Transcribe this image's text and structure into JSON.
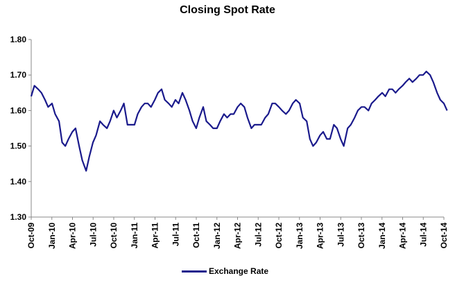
{
  "chart_data": {
    "type": "line",
    "title": "Closing Spot Rate",
    "xlabel": "",
    "ylabel": "",
    "ylim": [
      1.3,
      1.8
    ],
    "y_ticks": [
      "1.30",
      "1.40",
      "1.50",
      "1.60",
      "1.70",
      "1.80"
    ],
    "x_tick_labels": [
      "Oct-09",
      "Jan-10",
      "Apr-10",
      "Jul-10",
      "Oct-10",
      "Jan-11",
      "Apr-11",
      "Jul-11",
      "Oct-11",
      "Jan-12",
      "Apr-12",
      "Jul-12",
      "Oct-12",
      "Jan-13",
      "Apr-13",
      "Jul-13",
      "Oct-13",
      "Jan-14",
      "Apr-14",
      "Jul-14",
      "Oct-14"
    ],
    "grid": false,
    "legend_position": "bottom",
    "series_color": "#1a1a8c",
    "series": [
      {
        "name": "Exchange Rate",
        "x": [
          "2009-10-01",
          "2009-10-15",
          "2009-11-01",
          "2009-11-15",
          "2009-12-01",
          "2009-12-15",
          "2010-01-01",
          "2010-01-15",
          "2010-02-01",
          "2010-02-15",
          "2010-03-01",
          "2010-03-15",
          "2010-04-01",
          "2010-04-15",
          "2010-05-01",
          "2010-05-15",
          "2010-06-01",
          "2010-06-15",
          "2010-07-01",
          "2010-07-15",
          "2010-08-01",
          "2010-08-15",
          "2010-09-01",
          "2010-09-15",
          "2010-10-01",
          "2010-10-15",
          "2010-11-01",
          "2010-11-15",
          "2010-12-01",
          "2010-12-15",
          "2011-01-01",
          "2011-01-15",
          "2011-02-01",
          "2011-02-15",
          "2011-03-01",
          "2011-03-15",
          "2011-04-01",
          "2011-04-15",
          "2011-05-01",
          "2011-05-15",
          "2011-06-01",
          "2011-06-15",
          "2011-07-01",
          "2011-07-15",
          "2011-08-01",
          "2011-08-15",
          "2011-09-01",
          "2011-09-15",
          "2011-10-01",
          "2011-10-15",
          "2011-11-01",
          "2011-11-15",
          "2011-12-01",
          "2011-12-15",
          "2012-01-01",
          "2012-01-15",
          "2012-02-01",
          "2012-02-15",
          "2012-03-01",
          "2012-03-15",
          "2012-04-01",
          "2012-04-15",
          "2012-05-01",
          "2012-05-15",
          "2012-06-01",
          "2012-06-15",
          "2012-07-01",
          "2012-07-15",
          "2012-08-01",
          "2012-08-15",
          "2012-09-01",
          "2012-09-15",
          "2012-10-01",
          "2012-10-15",
          "2012-11-01",
          "2012-11-15",
          "2012-12-01",
          "2012-12-15",
          "2013-01-01",
          "2013-01-15",
          "2013-02-01",
          "2013-02-15",
          "2013-03-01",
          "2013-03-15",
          "2013-04-01",
          "2013-04-15",
          "2013-05-01",
          "2013-05-15",
          "2013-06-01",
          "2013-06-15",
          "2013-07-01",
          "2013-07-15",
          "2013-08-01",
          "2013-08-15",
          "2013-09-01",
          "2013-09-15",
          "2013-10-01",
          "2013-10-15",
          "2013-11-01",
          "2013-11-15",
          "2013-12-01",
          "2013-12-15",
          "2014-01-01",
          "2014-01-15",
          "2014-02-01",
          "2014-02-15",
          "2014-03-01",
          "2014-03-15",
          "2014-04-01",
          "2014-04-15",
          "2014-05-01",
          "2014-05-15",
          "2014-06-01",
          "2014-06-15",
          "2014-07-01",
          "2014-07-15",
          "2014-08-01",
          "2014-08-15",
          "2014-09-01",
          "2014-09-15",
          "2014-10-01",
          "2014-10-15"
        ],
        "values": [
          1.64,
          1.67,
          1.66,
          1.65,
          1.63,
          1.61,
          1.62,
          1.59,
          1.57,
          1.51,
          1.5,
          1.52,
          1.54,
          1.55,
          1.5,
          1.46,
          1.43,
          1.47,
          1.51,
          1.53,
          1.57,
          1.56,
          1.55,
          1.57,
          1.6,
          1.58,
          1.6,
          1.62,
          1.56,
          1.56,
          1.56,
          1.59,
          1.61,
          1.62,
          1.62,
          1.61,
          1.63,
          1.65,
          1.66,
          1.63,
          1.62,
          1.61,
          1.63,
          1.62,
          1.65,
          1.63,
          1.6,
          1.57,
          1.55,
          1.58,
          1.61,
          1.57,
          1.56,
          1.55,
          1.55,
          1.57,
          1.59,
          1.58,
          1.59,
          1.59,
          1.61,
          1.62,
          1.61,
          1.58,
          1.55,
          1.56,
          1.56,
          1.56,
          1.58,
          1.59,
          1.62,
          1.62,
          1.61,
          1.6,
          1.59,
          1.6,
          1.62,
          1.63,
          1.62,
          1.58,
          1.57,
          1.52,
          1.5,
          1.51,
          1.53,
          1.54,
          1.52,
          1.52,
          1.56,
          1.55,
          1.52,
          1.5,
          1.55,
          1.56,
          1.58,
          1.6,
          1.61,
          1.61,
          1.6,
          1.62,
          1.63,
          1.64,
          1.65,
          1.64,
          1.66,
          1.66,
          1.65,
          1.66,
          1.67,
          1.68,
          1.69,
          1.68,
          1.69,
          1.7,
          1.7,
          1.71,
          1.7,
          1.68,
          1.65,
          1.63,
          1.62,
          1.6
        ]
      }
    ]
  }
}
